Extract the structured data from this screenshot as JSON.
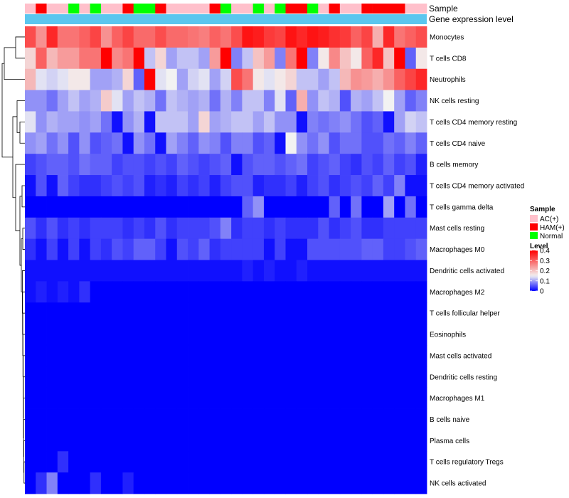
{
  "chart_data": {
    "type": "heatmap",
    "annotation_labels": {
      "sample": "Sample",
      "gene": "Gene expression level"
    },
    "legend_sample": {
      "title": "Sample",
      "entries": [
        {
          "label": "AC(+)",
          "color": "#FFC0CB"
        },
        {
          "label": "HAM(+)",
          "color": "#FF0000"
        },
        {
          "label": "Normal",
          "color": "#00FF00"
        }
      ]
    },
    "legend_level": {
      "title": "Level",
      "ticks": [
        "0.4",
        "0.3",
        "0.2",
        "0.1",
        "0"
      ],
      "tick_values": [
        0.4,
        0.3,
        0.2,
        0.1,
        0
      ],
      "min": 0,
      "max": 0.4,
      "mid": 0.15,
      "colors": {
        "low": "#0000FF",
        "mid": "#F2F2F2",
        "high": "#FF0000"
      }
    },
    "sample_group_colors": {
      "AC": "#FFC0CB",
      "HAM": "#FF0000",
      "Normal": "#00FF00"
    },
    "gene_bar_color": "#5BC6EE",
    "samples": [
      "AC",
      "HAM",
      "AC",
      "AC",
      "Normal",
      "AC",
      "Normal",
      "AC",
      "AC",
      "HAM",
      "Normal",
      "Normal",
      "HAM",
      "AC",
      "AC",
      "AC",
      "AC",
      "HAM",
      "Normal",
      "AC",
      "AC",
      "Normal",
      "AC",
      "Normal",
      "HAM",
      "HAM",
      "Normal",
      "AC",
      "HAM",
      "AC",
      "AC",
      "HAM",
      "HAM",
      "HAM",
      "HAM",
      "AC",
      "AC"
    ],
    "rows": [
      "Monocytes",
      "T cells CD8",
      "Neutrophils",
      "NK cells resting",
      "T cells CD4 memory resting",
      "T cells CD4 naive",
      "B cells memory",
      "T cells CD4 memory activated",
      "T cells gamma delta",
      "Mast cells resting",
      "Macrophages M0",
      "Dendritic cells activated",
      "Macrophages M2",
      "T cells follicular helper",
      "Eosinophils",
      "Mast cells activated",
      "Dendritic cells resting",
      "Macrophages M1",
      "B cells naive",
      "Plasma cells",
      "T cells regulatory  Tregs",
      "NK cells activated"
    ],
    "values": [
      [
        0.32,
        0.25,
        0.36,
        0.28,
        0.28,
        0.3,
        0.33,
        0.25,
        0.3,
        0.33,
        0.29,
        0.29,
        0.32,
        0.29,
        0.29,
        0.28,
        0.27,
        0.3,
        0.28,
        0.32,
        0.38,
        0.37,
        0.34,
        0.33,
        0.38,
        0.36,
        0.38,
        0.37,
        0.35,
        0.34,
        0.3,
        0.33,
        0.22,
        0.36,
        0.28,
        0.3,
        0.32
      ],
      [
        0.18,
        0.3,
        0.21,
        0.24,
        0.24,
        0.28,
        0.28,
        0.4,
        0.26,
        0.28,
        0.4,
        0.12,
        0.18,
        0.1,
        0.12,
        0.12,
        0.1,
        0.24,
        0.4,
        0.08,
        0.12,
        0.2,
        0.24,
        0.08,
        0.28,
        0.4,
        0.08,
        0.16,
        0.26,
        0.2,
        0.16,
        0.3,
        0.36,
        0.2,
        0.4,
        0.06,
        0.16
      ],
      [
        0.21,
        0.14,
        0.13,
        0.14,
        0.16,
        0.16,
        0.1,
        0.1,
        0.11,
        0.18,
        0.06,
        0.4,
        0.14,
        0.15,
        0.1,
        0.13,
        0.14,
        0.1,
        0.13,
        0.32,
        0.28,
        0.16,
        0.14,
        0.16,
        0.18,
        0.12,
        0.12,
        0.1,
        0.12,
        0.21,
        0.25,
        0.24,
        0.22,
        0.25,
        0.3,
        0.33,
        0.36
      ],
      [
        0.09,
        0.09,
        0.07,
        0.1,
        0.12,
        0.1,
        0.11,
        0.19,
        0.14,
        0.1,
        0.12,
        0.11,
        0.07,
        0.12,
        0.11,
        0.1,
        0.11,
        0.07,
        0.11,
        0.08,
        0.12,
        0.12,
        0.08,
        0.14,
        0.06,
        0.22,
        0.09,
        0.12,
        0.11,
        0.05,
        0.11,
        0.1,
        0.12,
        0.15,
        0.1,
        0.06,
        0.08
      ],
      [
        0.14,
        0.09,
        0.11,
        0.1,
        0.1,
        0.09,
        0.1,
        0.07,
        0.01,
        0.09,
        0.11,
        0.01,
        0.12,
        0.12,
        0.12,
        0.1,
        0.18,
        0.1,
        0.11,
        0.12,
        0.12,
        0.1,
        0.12,
        0.09,
        0.09,
        0.01,
        0.08,
        0.07,
        0.08,
        0.09,
        0.07,
        0.05,
        0.06,
        0.01,
        0.1,
        0.13,
        0.12
      ],
      [
        0.09,
        0.1,
        0.07,
        0.09,
        0.05,
        0.09,
        0.05,
        0.06,
        0.07,
        0.01,
        0.09,
        0.07,
        0.01,
        0.1,
        0.08,
        0.06,
        0.09,
        0.08,
        0.05,
        0.08,
        0.08,
        0.05,
        0.06,
        0.01,
        0.15,
        0.09,
        0.07,
        0.09,
        0.05,
        0.07,
        0.07,
        0.05,
        0.05,
        0.07,
        0.06,
        0.08,
        0.06
      ],
      [
        0.04,
        0.05,
        0.06,
        0.06,
        0.05,
        0.07,
        0.06,
        0.06,
        0.04,
        0.05,
        0.05,
        0.04,
        0.05,
        0.04,
        0.06,
        0.05,
        0.04,
        0.05,
        0.06,
        0.01,
        0.05,
        0.06,
        0.06,
        0.05,
        0.06,
        0.07,
        0.04,
        0.05,
        0.06,
        0.04,
        0.03,
        0.05,
        0.04,
        0.06,
        0.04,
        0.05,
        0.02
      ],
      [
        0.01,
        0.05,
        0.01,
        0.06,
        0.04,
        0.03,
        0.03,
        0.04,
        0.05,
        0.04,
        0.05,
        0.02,
        0.03,
        0.02,
        0.04,
        0.03,
        0.04,
        0.02,
        0.04,
        0.05,
        0.05,
        0.02,
        0.03,
        0.03,
        0.04,
        0.02,
        0.04,
        0.05,
        0.03,
        0.04,
        0.05,
        0.04,
        0.06,
        0.04,
        0.08,
        0.01,
        0.01
      ],
      [
        0.0,
        0.0,
        0.0,
        0.0,
        0.0,
        0.0,
        0.0,
        0.0,
        0.0,
        0.0,
        0.0,
        0.0,
        0.0,
        0.0,
        0.0,
        0.0,
        0.0,
        0.0,
        0.0,
        0.0,
        0.06,
        0.09,
        0.0,
        0.0,
        0.0,
        0.0,
        0.0,
        0.0,
        0.06,
        0.0,
        0.07,
        0.0,
        0.0,
        0.1,
        0.0,
        0.07,
        0.0
      ],
      [
        0.05,
        0.03,
        0.05,
        0.03,
        0.04,
        0.03,
        0.04,
        0.04,
        0.04,
        0.03,
        0.04,
        0.03,
        0.05,
        0.03,
        0.04,
        0.04,
        0.04,
        0.05,
        0.08,
        0.03,
        0.04,
        0.04,
        0.03,
        0.04,
        0.03,
        0.03,
        0.03,
        0.05,
        0.03,
        0.04,
        0.05,
        0.03,
        0.03,
        0.04,
        0.04,
        0.04,
        0.04
      ],
      [
        0.03,
        0.01,
        0.04,
        0.01,
        0.04,
        0.01,
        0.04,
        0.03,
        0.05,
        0.04,
        0.06,
        0.06,
        0.04,
        0.01,
        0.05,
        0.04,
        0.06,
        0.03,
        0.04,
        0.04,
        0.04,
        0.04,
        0.01,
        0.04,
        0.01,
        0.01,
        0.05,
        0.05,
        0.05,
        0.05,
        0.05,
        0.06,
        0.06,
        0.04,
        0.04,
        0.05,
        0.06
      ],
      [
        0.01,
        0.01,
        0.01,
        0.01,
        0.01,
        0.01,
        0.01,
        0.01,
        0.01,
        0.01,
        0.01,
        0.01,
        0.01,
        0.01,
        0.01,
        0.01,
        0.01,
        0.01,
        0.01,
        0.01,
        0.02,
        0.01,
        0.02,
        0.01,
        0.01,
        0.02,
        0.01,
        0.01,
        0.01,
        0.01,
        0.01,
        0.01,
        0.01,
        0.01,
        0.01,
        0.01,
        0.01
      ],
      [
        0.01,
        0.02,
        0.01,
        0.02,
        0.01,
        0.03,
        0.0,
        0.0,
        0.0,
        0.0,
        0.0,
        0.0,
        0.0,
        0.0,
        0.0,
        0.0,
        0.0,
        0.0,
        0.0,
        0.0,
        0.0,
        0.0,
        0.0,
        0.0,
        0.0,
        0.0,
        0.0,
        0.0,
        0.0,
        0.0,
        0.0,
        0.0,
        0.0,
        0.0,
        0.0,
        0.0,
        0.0
      ],
      [
        0.0,
        0.0,
        0.0,
        0.0,
        0.0,
        0.0,
        0.0,
        0.0,
        0.0,
        0.0,
        0.0,
        0.0,
        0.0,
        0.0,
        0.0,
        0.0,
        0.0,
        0.0,
        0.0,
        0.0,
        0.0,
        0.0,
        0.0,
        0.0,
        0.0,
        0.0,
        0.0,
        0.0,
        0.0,
        0.0,
        0.0,
        0.0,
        0.0,
        0.0,
        0.0,
        0.0,
        0.0
      ],
      [
        0.0,
        0.0,
        0.0,
        0.0,
        0.0,
        0.0,
        0.0,
        0.0,
        0.0,
        0.0,
        0.0,
        0.0,
        0.0,
        0.0,
        0.0,
        0.0,
        0.0,
        0.0,
        0.0,
        0.0,
        0.0,
        0.0,
        0.0,
        0.0,
        0.0,
        0.0,
        0.0,
        0.0,
        0.0,
        0.0,
        0.0,
        0.0,
        0.0,
        0.0,
        0.0,
        0.0,
        0.0
      ],
      [
        0.0,
        0.0,
        0.0,
        0.0,
        0.0,
        0.0,
        0.0,
        0.0,
        0.0,
        0.0,
        0.0,
        0.0,
        0.0,
        0.0,
        0.0,
        0.0,
        0.0,
        0.0,
        0.0,
        0.0,
        0.0,
        0.0,
        0.0,
        0.0,
        0.0,
        0.0,
        0.0,
        0.0,
        0.0,
        0.0,
        0.0,
        0.0,
        0.0,
        0.0,
        0.0,
        0.0,
        0.0
      ],
      [
        0.0,
        0.0,
        0.0,
        0.0,
        0.0,
        0.0,
        0.0,
        0.0,
        0.0,
        0.0,
        0.0,
        0.0,
        0.0,
        0.0,
        0.0,
        0.0,
        0.0,
        0.0,
        0.0,
        0.0,
        0.0,
        0.0,
        0.0,
        0.0,
        0.0,
        0.0,
        0.0,
        0.0,
        0.0,
        0.0,
        0.0,
        0.0,
        0.0,
        0.0,
        0.0,
        0.0,
        0.0
      ],
      [
        0.0,
        0.0,
        0.0,
        0.0,
        0.0,
        0.0,
        0.0,
        0.0,
        0.0,
        0.0,
        0.0,
        0.0,
        0.0,
        0.0,
        0.0,
        0.0,
        0.0,
        0.0,
        0.0,
        0.0,
        0.0,
        0.0,
        0.0,
        0.0,
        0.0,
        0.0,
        0.0,
        0.0,
        0.0,
        0.0,
        0.0,
        0.0,
        0.0,
        0.0,
        0.0,
        0.0,
        0.0
      ],
      [
        0.0,
        0.0,
        0.0,
        0.0,
        0.0,
        0.0,
        0.0,
        0.0,
        0.0,
        0.0,
        0.0,
        0.0,
        0.0,
        0.0,
        0.0,
        0.0,
        0.0,
        0.0,
        0.0,
        0.0,
        0.0,
        0.0,
        0.0,
        0.0,
        0.0,
        0.0,
        0.0,
        0.0,
        0.0,
        0.0,
        0.0,
        0.0,
        0.0,
        0.0,
        0.0,
        0.0,
        0.0
      ],
      [
        0.0,
        0.0,
        0.0,
        0.0,
        0.0,
        0.0,
        0.0,
        0.0,
        0.0,
        0.0,
        0.0,
        0.0,
        0.0,
        0.0,
        0.0,
        0.0,
        0.0,
        0.0,
        0.0,
        0.0,
        0.0,
        0.0,
        0.0,
        0.0,
        0.0,
        0.0,
        0.0,
        0.0,
        0.0,
        0.0,
        0.0,
        0.0,
        0.0,
        0.0,
        0.0,
        0.0,
        0.0
      ],
      [
        0.0,
        0.0,
        0.0,
        0.03,
        0.0,
        0.0,
        0.0,
        0.0,
        0.0,
        0.0,
        0.0,
        0.0,
        0.0,
        0.0,
        0.0,
        0.0,
        0.0,
        0.0,
        0.0,
        0.0,
        0.0,
        0.0,
        0.0,
        0.0,
        0.0,
        0.0,
        0.0,
        0.0,
        0.0,
        0.0,
        0.0,
        0.0,
        0.0,
        0.0,
        0.0,
        0.0,
        0.0
      ],
      [
        0.0,
        0.03,
        0.08,
        0.0,
        0.0,
        0.0,
        0.03,
        0.0,
        0.0,
        0.02,
        0.0,
        0.0,
        0.0,
        0.0,
        0.0,
        0.0,
        0.0,
        0.0,
        0.0,
        0.0,
        0.0,
        0.0,
        0.0,
        0.0,
        0.0,
        0.0,
        0.0,
        0.0,
        0.0,
        0.0,
        0.0,
        0.0,
        0.0,
        0.0,
        0.0,
        0.0,
        0.0
      ]
    ]
  }
}
